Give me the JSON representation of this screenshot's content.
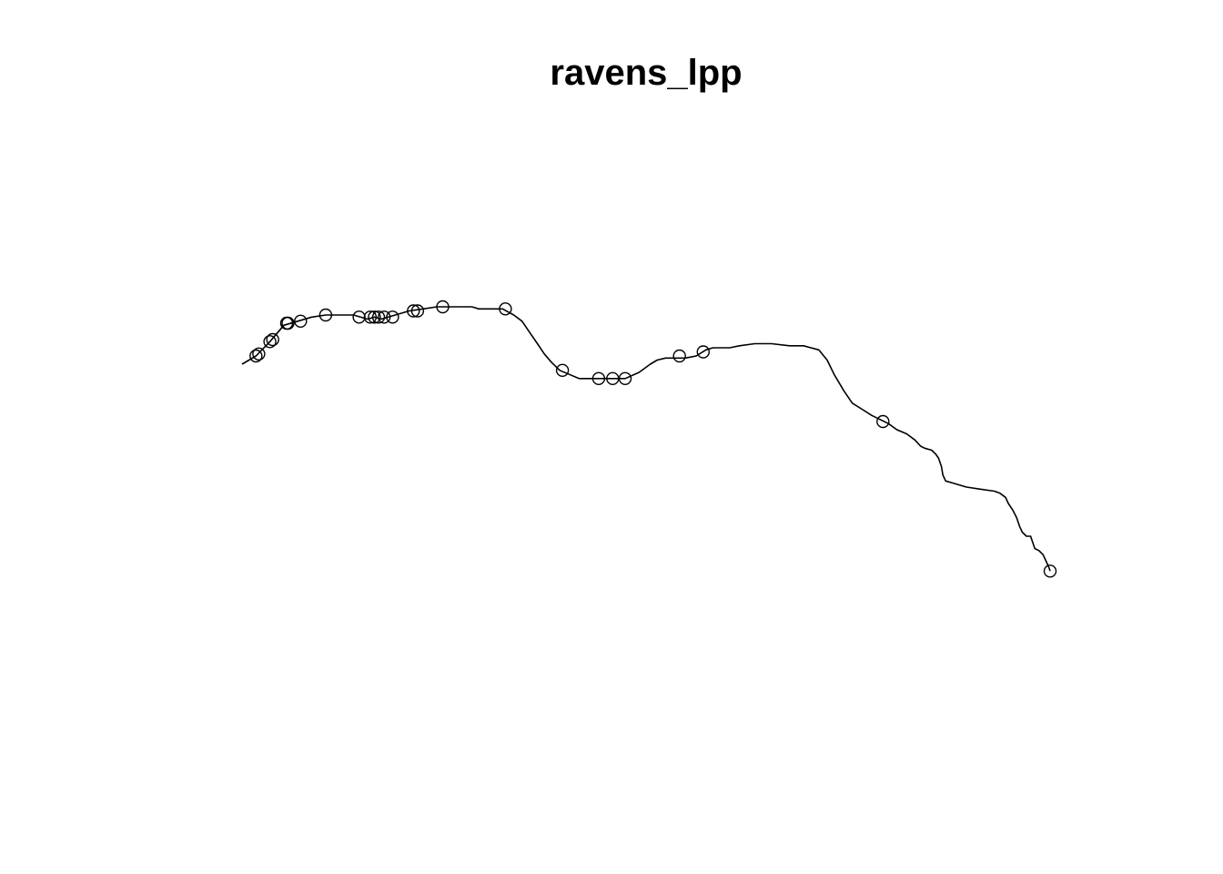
{
  "chart_data": {
    "type": "scatter",
    "title": "ravens_lpp",
    "xlabel": "",
    "ylabel": "",
    "axes": false,
    "grid": false,
    "legend": false,
    "colors": {
      "line": "#000000",
      "points": "#000000",
      "background": "#ffffff"
    },
    "network": {
      "name": "",
      "vertices": [
        [
          0,
          74
        ],
        [
          10,
          78
        ],
        [
          20,
          85
        ],
        [
          30,
          93
        ],
        [
          40,
          95
        ],
        [
          50,
          97
        ],
        [
          60,
          98
        ],
        [
          70,
          98
        ],
        [
          80,
          98
        ],
        [
          90,
          96
        ],
        [
          95,
          97
        ],
        [
          100,
          96
        ],
        [
          110,
          98
        ],
        [
          120,
          100
        ],
        [
          130,
          101
        ],
        [
          140,
          102
        ],
        [
          150,
          102
        ],
        [
          160,
          102
        ],
        [
          165,
          102
        ],
        [
          170,
          101
        ],
        [
          175,
          101
        ],
        [
          180,
          101
        ],
        [
          187,
          101
        ],
        [
          195,
          98
        ],
        [
          201,
          95
        ],
        [
          207,
          89
        ],
        [
          212,
          84
        ],
        [
          217,
          79
        ],
        [
          222,
          75
        ],
        [
          228,
          71
        ],
        [
          235,
          69
        ],
        [
          242,
          67
        ],
        [
          250,
          67
        ],
        [
          260,
          67
        ],
        [
          270,
          67
        ],
        [
          275,
          67
        ],
        [
          285,
          70
        ],
        [
          293,
          74
        ],
        [
          298,
          76
        ],
        [
          304,
          77
        ],
        [
          311,
          77
        ],
        [
          318,
          77
        ],
        [
          326,
          78
        ],
        [
          333,
          81
        ],
        [
          338,
          82
        ],
        [
          344,
          82
        ],
        [
          350,
          82
        ],
        [
          357,
          83
        ],
        [
          368,
          84
        ],
        [
          380,
          84
        ],
        [
          393,
          83
        ],
        [
          403,
          83
        ],
        [
          414,
          81
        ],
        [
          420,
          76
        ],
        [
          425,
          69
        ],
        [
          432,
          61
        ],
        [
          438,
          55
        ],
        [
          445,
          52
        ],
        [
          452,
          49
        ],
        [
          458,
          47
        ],
        [
          464,
          45
        ],
        [
          470,
          42
        ],
        [
          477,
          40
        ],
        [
          483,
          37
        ],
        [
          487,
          34
        ],
        [
          490,
          33
        ],
        [
          495,
          32
        ],
        [
          498,
          30
        ],
        [
          500,
          28
        ],
        [
          502,
          24
        ],
        [
          503,
          20
        ],
        [
          505,
          17
        ],
        [
          510,
          16
        ],
        [
          520,
          14
        ],
        [
          530,
          13
        ],
        [
          540,
          12
        ],
        [
          544,
          11
        ],
        [
          548,
          9
        ],
        [
          550,
          6
        ],
        [
          553,
          3
        ],
        [
          556,
          -1
        ],
        [
          558,
          -5
        ],
        [
          560,
          -8
        ],
        [
          563,
          -10
        ],
        [
          566,
          -10
        ],
        [
          567,
          -12
        ],
        [
          569,
          -16
        ],
        [
          572,
          -17
        ],
        [
          575,
          -19
        ],
        [
          577,
          -22
        ],
        [
          579,
          -25
        ],
        [
          580,
          -27
        ]
      ]
    },
    "points": [
      [
        10,
        78
      ],
      [
        12,
        79
      ],
      [
        20,
        85
      ],
      [
        22,
        86
      ],
      [
        32,
        94
      ],
      [
        33,
        94
      ],
      [
        42,
        95
      ],
      [
        60,
        98
      ],
      [
        84,
        97
      ],
      [
        92,
        97
      ],
      [
        95,
        97
      ],
      [
        98,
        97
      ],
      [
        102,
        97
      ],
      [
        108,
        97
      ],
      [
        123,
        100
      ],
      [
        126,
        100
      ],
      [
        144,
        102
      ],
      [
        189,
        101
      ],
      [
        230,
        71
      ],
      [
        256,
        67
      ],
      [
        266,
        67
      ],
      [
        275,
        67
      ],
      [
        314,
        78
      ],
      [
        331,
        80
      ],
      [
        460,
        46
      ],
      [
        580,
        -27
      ]
    ],
    "xlim": [
      -12,
      600
    ],
    "ylim": [
      -20,
      140
    ]
  }
}
